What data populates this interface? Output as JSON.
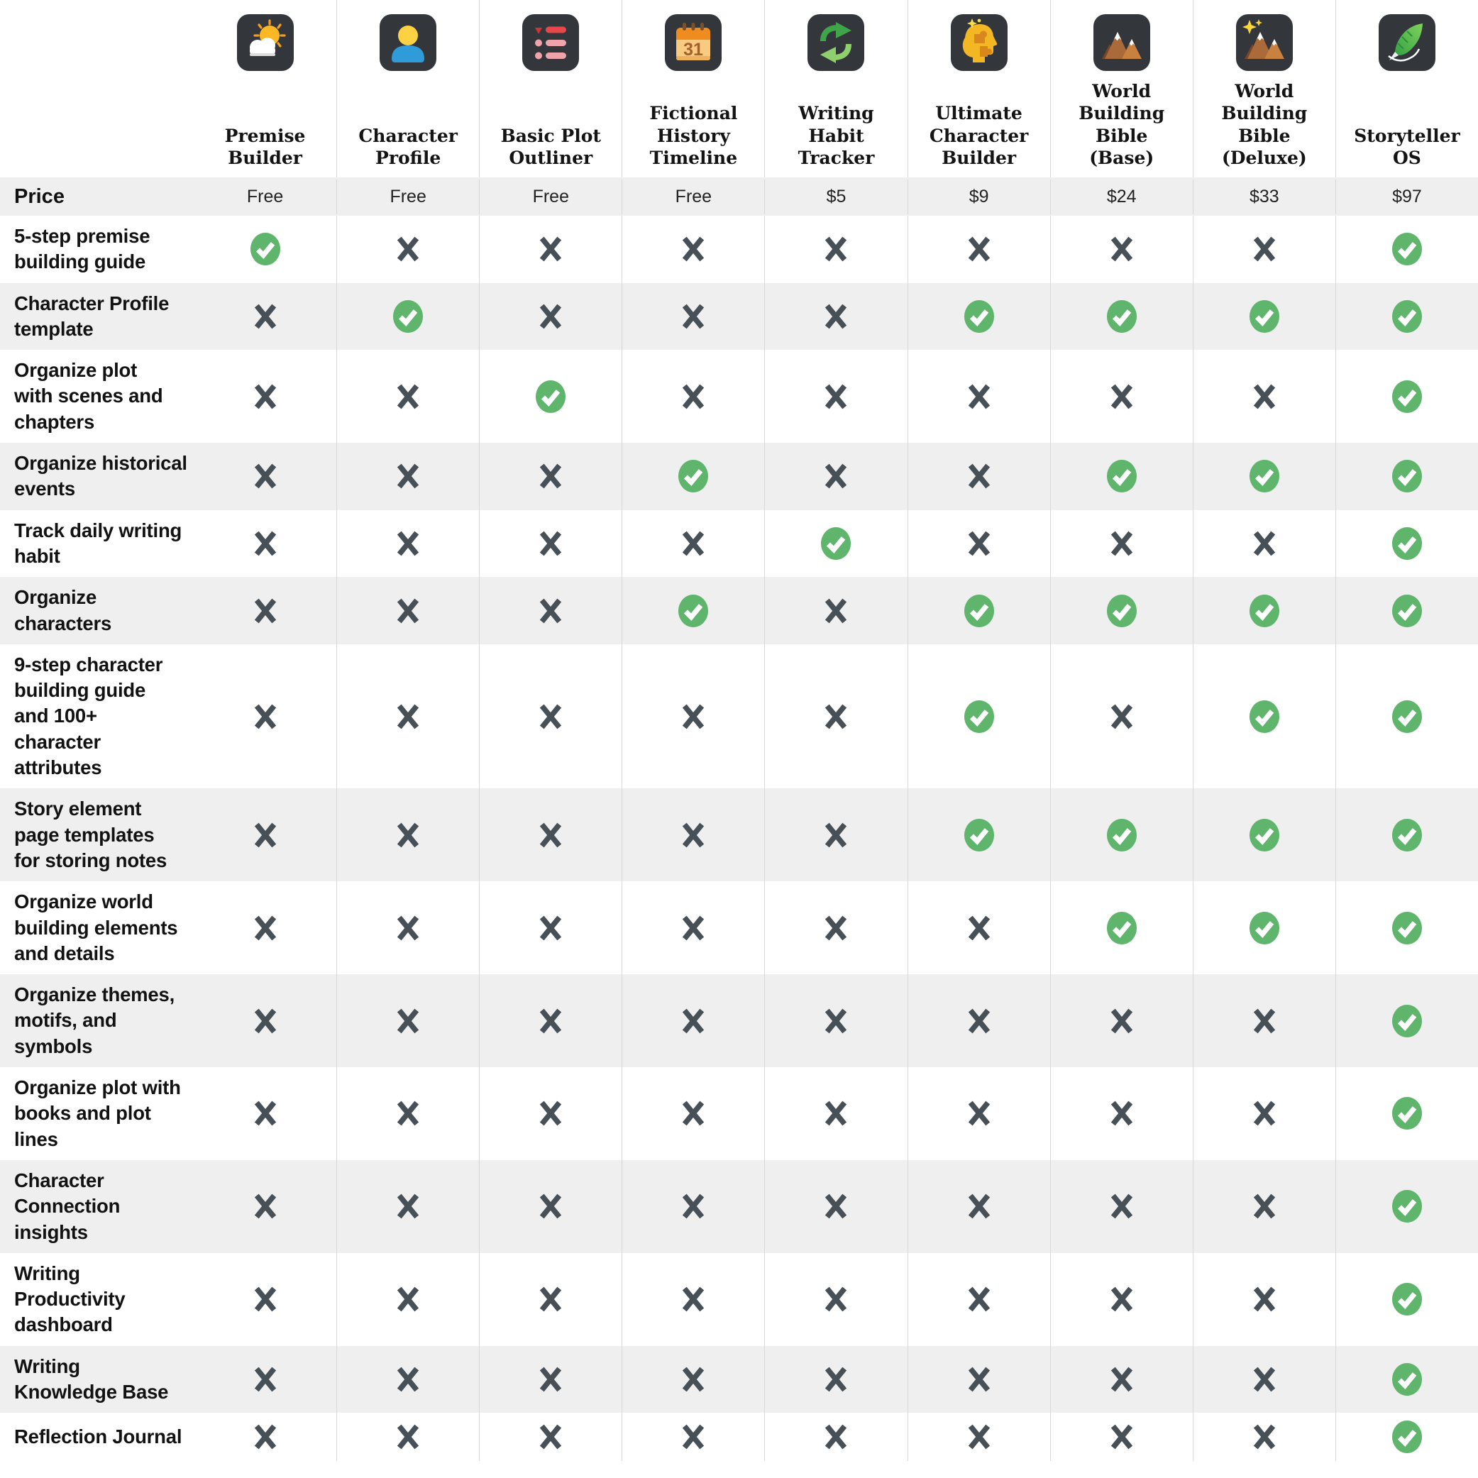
{
  "table": {
    "columns": [
      {
        "title": "Premise\nBuilder",
        "icon": "premise-builder-icon",
        "price": "Free"
      },
      {
        "title": "Character\nProfile",
        "icon": "character-profile-icon",
        "price": "Free"
      },
      {
        "title": "Basic Plot\nOutliner",
        "icon": "basic-plot-outliner-icon",
        "price": "Free"
      },
      {
        "title": "Fictional\nHistory\nTimeline",
        "icon": "fictional-history-timeline-icon",
        "price": "Free"
      },
      {
        "title": "Writing Habit\nTracker",
        "icon": "writing-habit-tracker-icon",
        "price": "$5"
      },
      {
        "title": "Ultimate\nCharacter\nBuilder",
        "icon": "ultimate-character-builder-icon",
        "price": "$9"
      },
      {
        "title": "World\nBuilding Bible\n(Base)",
        "icon": "world-building-bible-base-icon",
        "price": "$24"
      },
      {
        "title": "World\nBuilding Bible\n(Deluxe)",
        "icon": "world-building-bible-deluxe-icon",
        "price": "$33"
      },
      {
        "title": "Storyteller OS",
        "icon": "storyteller-os-icon",
        "price": "$97"
      }
    ],
    "price_row": {
      "label": "Price",
      "values": [
        "Free",
        "Free",
        "Free",
        "Free",
        "$5",
        "$9",
        "$24",
        "$33",
        "$97"
      ]
    },
    "features": [
      {
        "label": "5-step premise\nbuilding guide",
        "availability": [
          true,
          false,
          false,
          false,
          false,
          false,
          false,
          false,
          true
        ]
      },
      {
        "label": "Character Profile\ntemplate",
        "availability": [
          false,
          true,
          false,
          false,
          false,
          true,
          true,
          true,
          true
        ]
      },
      {
        "label": "Organize plot\nwith scenes and\nchapters",
        "availability": [
          false,
          false,
          true,
          false,
          false,
          false,
          false,
          false,
          true
        ]
      },
      {
        "label": "Organize historical\nevents",
        "availability": [
          false,
          false,
          false,
          true,
          false,
          false,
          true,
          true,
          true
        ]
      },
      {
        "label": "Track daily writing\nhabit",
        "availability": [
          false,
          false,
          false,
          false,
          true,
          false,
          false,
          false,
          true
        ]
      },
      {
        "label": "Organize\ncharacters",
        "availability": [
          false,
          false,
          false,
          true,
          false,
          true,
          true,
          true,
          true
        ]
      },
      {
        "label": "9-step character\nbuilding guide\nand 100+\ncharacter\nattributes",
        "availability": [
          false,
          false,
          false,
          false,
          false,
          true,
          false,
          true,
          true
        ]
      },
      {
        "label": "Story element\npage templates\nfor storing notes",
        "availability": [
          false,
          false,
          false,
          false,
          false,
          true,
          true,
          true,
          true
        ]
      },
      {
        "label": "Organize world\nbuilding elements\nand details",
        "availability": [
          false,
          false,
          false,
          false,
          false,
          false,
          true,
          true,
          true
        ]
      },
      {
        "label": "Organize themes,\nmotifs, and\nsymbols",
        "availability": [
          false,
          false,
          false,
          false,
          false,
          false,
          false,
          false,
          true
        ]
      },
      {
        "label": "Organize plot with\nbooks and plot\nlines",
        "availability": [
          false,
          false,
          false,
          false,
          false,
          false,
          false,
          false,
          true
        ]
      },
      {
        "label": "Character\nConnection\ninsights",
        "availability": [
          false,
          false,
          false,
          false,
          false,
          false,
          false,
          false,
          true
        ]
      },
      {
        "label": "Writing\nProductivity\ndashboard",
        "availability": [
          false,
          false,
          false,
          false,
          false,
          false,
          false,
          false,
          true
        ]
      },
      {
        "label": "Writing\nKnowledge Base",
        "availability": [
          false,
          false,
          false,
          false,
          false,
          false,
          false,
          false,
          true
        ]
      },
      {
        "label": "Reflection Journal",
        "availability": [
          false,
          false,
          false,
          false,
          false,
          false,
          false,
          false,
          true
        ]
      }
    ],
    "marks": {
      "available": "check-icon",
      "unavailable": "cross-icon"
    },
    "colors": {
      "check_green": "#5fb56c",
      "cross_gray": "#474f57",
      "alt_row_bg": "#efefef",
      "divider": "#d8d8d8",
      "icon_tile_bg": "#33373c"
    }
  }
}
